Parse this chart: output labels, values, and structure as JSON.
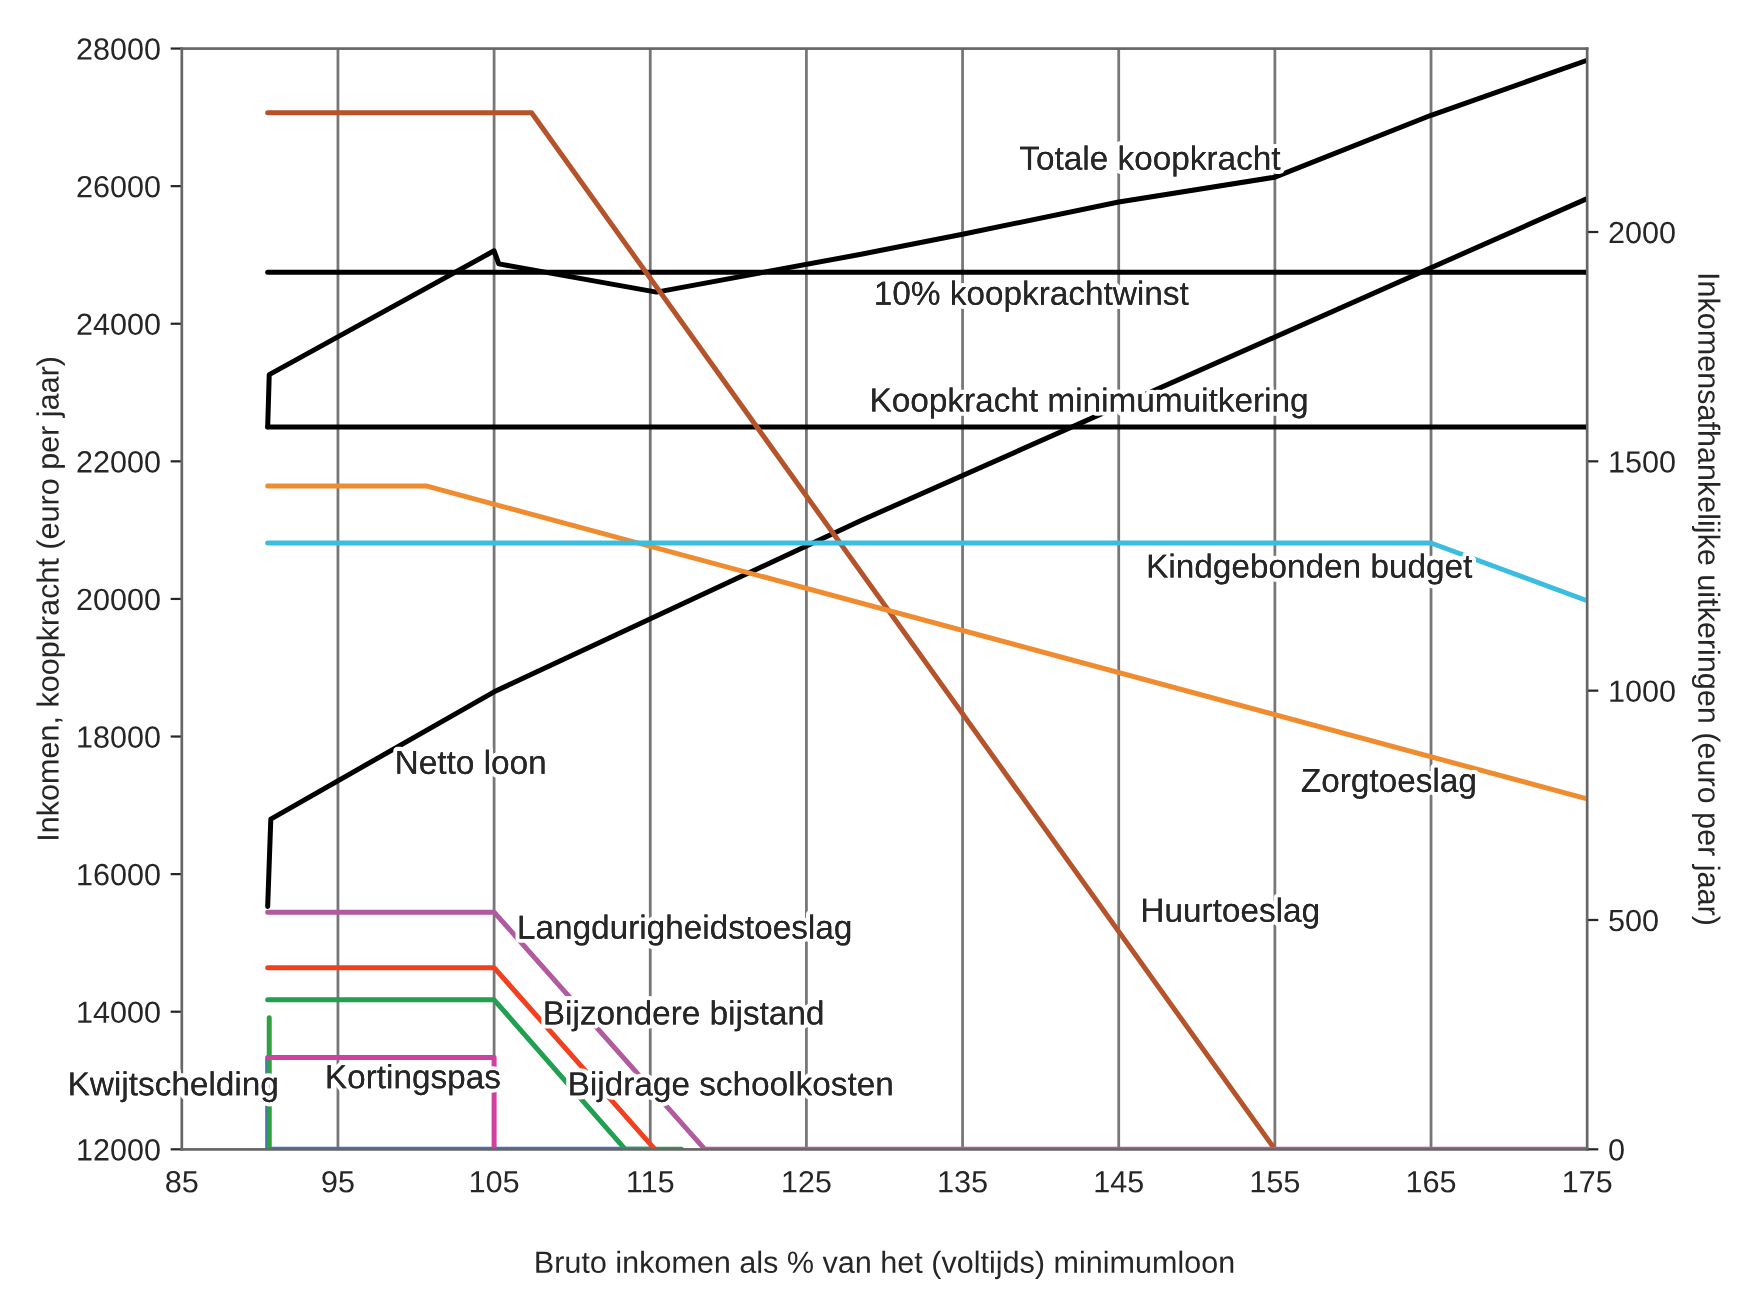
{
  "chart_data": {
    "type": "line",
    "xlabel": "Bruto inkomen als % van het (voltijds) minimumloon",
    "ylabel": "Inkomen, koopkracht (euro per jaar)",
    "y2label": "Inkomensafhankelijke uitkeringen (euro per jaar)",
    "xlim": [
      85,
      175
    ],
    "xticks": [
      85,
      95,
      105,
      115,
      125,
      135,
      145,
      155,
      165,
      175
    ],
    "ylim": [
      12000,
      28000
    ],
    "yticks": [
      12000,
      14000,
      16000,
      18000,
      20000,
      22000,
      24000,
      26000,
      28000
    ],
    "y2lim": [
      0,
      2400
    ],
    "y2ticks": [
      0,
      500,
      1000,
      1500,
      2000
    ],
    "grid": "x",
    "marker": "none",
    "line_style": "solid",
    "series": [
      {
        "color": "#000000",
        "x": [
          90.5,
          90.6,
          105,
          105.3,
          115.4,
          128.5,
          135,
          145,
          155,
          165,
          175
        ],
        "values": [
          22500,
          23260,
          25060,
          24870,
          24460,
          25010,
          25300,
          25770,
          26130,
          27030,
          27830
        ]
      },
      {
        "color": "#000000",
        "x": [
          90.5,
          175
        ],
        "values": [
          24750,
          24750
        ]
      },
      {
        "color": "#000000",
        "x": [
          90.5,
          175
        ],
        "values": [
          22500,
          22500
        ]
      },
      {
        "color": "#000000",
        "x": [
          90.5,
          90.7,
          105,
          128.5,
          175
        ],
        "values": [
          15530,
          16800,
          18650,
          21140,
          25820
        ]
      },
      {
        "color": "#b5532a",
        "axis": "y2",
        "x": [
          90.5,
          107.4,
          155
        ],
        "values": [
          2260,
          2260,
          0
        ]
      },
      {
        "color": "#f08c30",
        "axis": "y2",
        "x": [
          90.5,
          100.7,
          175
        ],
        "values": [
          1446,
          1446,
          764
        ]
      },
      {
        "color": "#3bbde0",
        "axis": "y2",
        "x": [
          90.5,
          165,
          175
        ],
        "values": [
          1322,
          1322,
          1196
        ]
      },
      {
        "color": "#4070d0",
        "axis": "y2",
        "x": [
          90.5,
          90.5,
          115
        ],
        "values": [
          196,
          0,
          0
        ]
      },
      {
        "color": "#30a040",
        "axis": "y2",
        "x": [
          90.6,
          90.6
        ],
        "values": [
          287,
          0
        ]
      },
      {
        "color": "#d040a0",
        "axis": "y2",
        "x": [
          90.5,
          105,
          105
        ],
        "values": [
          200,
          200,
          0
        ]
      },
      {
        "color": "#20a050",
        "axis": "y2",
        "x": [
          90.5,
          105,
          113.4,
          117
        ],
        "values": [
          326,
          326,
          0,
          0
        ]
      },
      {
        "color": "#f04020",
        "axis": "y2",
        "x": [
          90.5,
          105,
          115.3
        ],
        "values": [
          396,
          396,
          0
        ]
      },
      {
        "color": "#b05aa0",
        "axis": "y2",
        "x": [
          90.5,
          105,
          118.5,
          175
        ],
        "values": [
          517,
          517,
          0,
          0
        ]
      }
    ],
    "annotations": [
      {
        "text": "Totale koopkracht",
        "x": 147,
        "y": 25842
      },
      {
        "text": "10% koopkrachtwinst",
        "x": 139.4,
        "y": 24750
      },
      {
        "text": "Koopkracht minimumuitkering",
        "x": 143.1,
        "y": 22500
      },
      {
        "text": "Kindgebonden budget",
        "x": 157.2,
        "y": 20813
      },
      {
        "text": "Netto loon",
        "x": 103.5,
        "y": 18455
      },
      {
        "text": "Zorgtoeslag",
        "x": 162.3,
        "y": 17873
      },
      {
        "text": "Huurtoeslag",
        "x": 144.2,
        "y": 15433
      },
      {
        "text": "Langdurigheidstoeslag",
        "x": 106.7,
        "y": 15013
      },
      {
        "text": "Bijzondere bijstand",
        "x": 108.3,
        "y": 13795
      },
      {
        "text": "Bijdrage schoolkosten",
        "x": 111.7,
        "y": 12910
      },
      {
        "text": "Kortingspas",
        "x": 99.8,
        "y": 13333
      },
      {
        "text": "Kwijtschelding",
        "x": 90.6,
        "y": 12910
      }
    ]
  }
}
